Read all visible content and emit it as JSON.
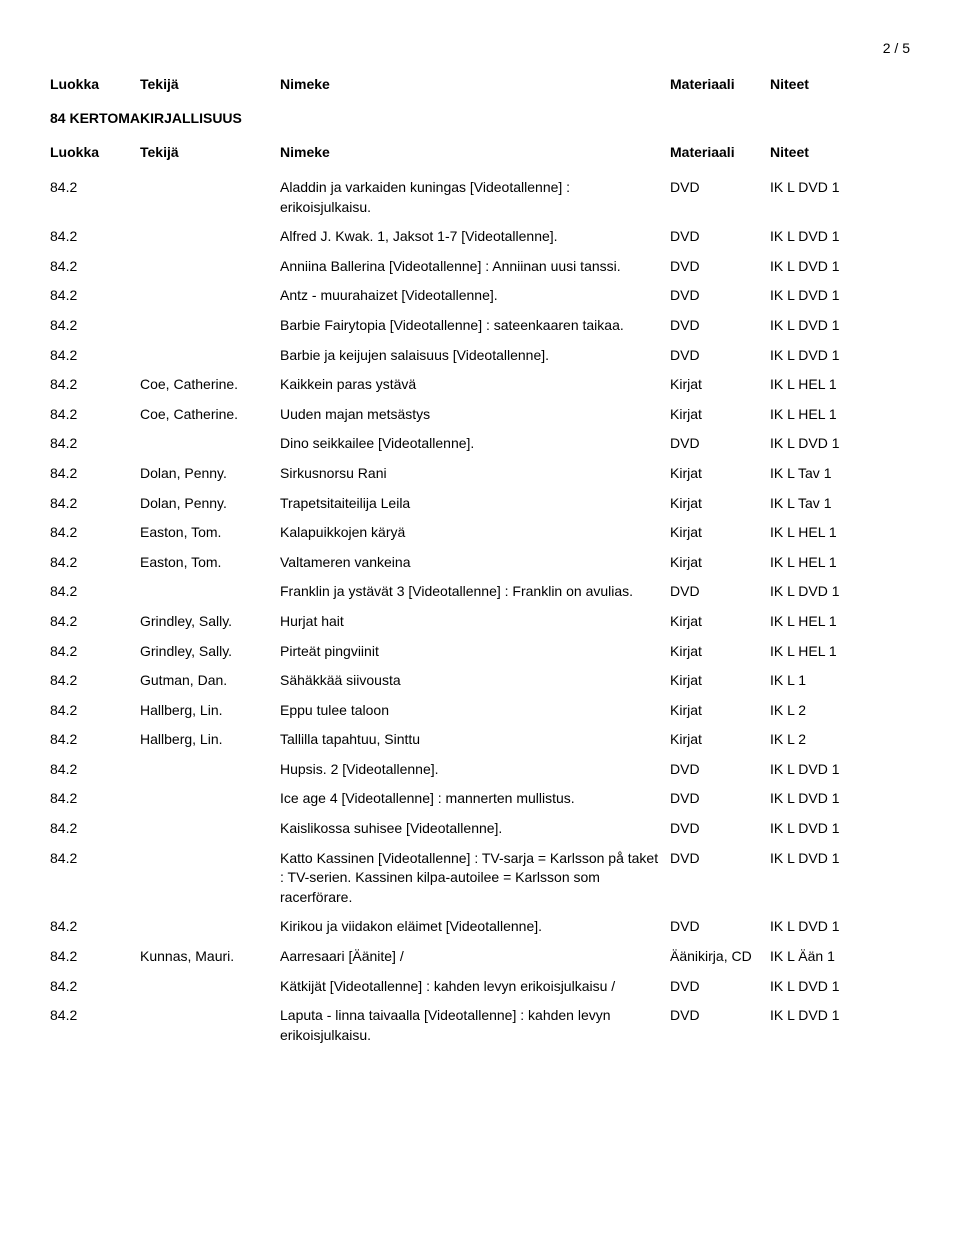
{
  "page_number": "2 / 5",
  "headers": {
    "luokka": "Luokka",
    "tekija": "Tekijä",
    "nimeke": "Nimeke",
    "materiaali": "Materiaali",
    "niteet": "Niteet"
  },
  "section_title": "84 KERTOMAKIRJALLISUUS",
  "rows": [
    {
      "luokka": "84.2",
      "tekija": "",
      "nimeke": "Aladdin ja varkaiden kuningas [Videotallenne] : erikoisjulkaisu.",
      "materiaali": "DVD",
      "niteet": "IK  L DVD 1"
    },
    {
      "luokka": "84.2",
      "tekija": "",
      "nimeke": "Alfred J. Kwak. 1, Jaksot 1-7 [Videotallenne].",
      "materiaali": "DVD",
      "niteet": "IK  L DVD 1"
    },
    {
      "luokka": "84.2",
      "tekija": "",
      "nimeke": "Anniina Ballerina [Videotallenne] : Anniinan uusi tanssi.",
      "materiaali": "DVD",
      "niteet": "IK  L DVD 1"
    },
    {
      "luokka": "84.2",
      "tekija": "",
      "nimeke": "Antz - muurahaizet [Videotallenne].",
      "materiaali": "DVD",
      "niteet": "IK  L DVD 1"
    },
    {
      "luokka": "84.2",
      "tekija": "",
      "nimeke": "Barbie Fairytopia [Videotallenne] : sateenkaaren taikaa.",
      "materiaali": "DVD",
      "niteet": "IK  L DVD 1"
    },
    {
      "luokka": "84.2",
      "tekija": "",
      "nimeke": "Barbie ja keijujen salaisuus [Videotallenne].",
      "materiaali": "DVD",
      "niteet": "IK  L DVD 1"
    },
    {
      "luokka": "84.2",
      "tekija": "Coe, Catherine.",
      "nimeke": "Kaikkein paras ystävä",
      "materiaali": "Kirjat",
      "niteet": "IK  L HEL 1"
    },
    {
      "luokka": "84.2",
      "tekija": "Coe, Catherine.",
      "nimeke": "Uuden majan metsästys",
      "materiaali": "Kirjat",
      "niteet": "IK  L HEL 1"
    },
    {
      "luokka": "84.2",
      "tekija": "",
      "nimeke": "Dino seikkailee [Videotallenne].",
      "materiaali": "DVD",
      "niteet": "IK  L DVD 1"
    },
    {
      "luokka": "84.2",
      "tekija": "Dolan, Penny.",
      "nimeke": "Sirkusnorsu Rani",
      "materiaali": "Kirjat",
      "niteet": "IK  L Tav 1"
    },
    {
      "luokka": "84.2",
      "tekija": "Dolan, Penny.",
      "nimeke": "Trapetsitaiteilija Leila",
      "materiaali": "Kirjat",
      "niteet": "IK  L Tav 1"
    },
    {
      "luokka": "84.2",
      "tekija": "Easton, Tom.",
      "nimeke": "Kalapuikkojen käryä",
      "materiaali": "Kirjat",
      "niteet": "IK  L HEL 1"
    },
    {
      "luokka": "84.2",
      "tekija": "Easton, Tom.",
      "nimeke": "Valtameren vankeina",
      "materiaali": "Kirjat",
      "niteet": "IK  L HEL 1"
    },
    {
      "luokka": "84.2",
      "tekija": "",
      "nimeke": "Franklin ja ystävät 3 [Videotallenne] : Franklin on avulias.",
      "materiaali": "DVD",
      "niteet": "IK  L DVD 1"
    },
    {
      "luokka": "84.2",
      "tekija": "Grindley, Sally.",
      "nimeke": "Hurjat hait",
      "materiaali": "Kirjat",
      "niteet": "IK  L HEL 1"
    },
    {
      "luokka": "84.2",
      "tekija": "Grindley, Sally.",
      "nimeke": "Pirteät pingviinit",
      "materiaali": "Kirjat",
      "niteet": "IK  L HEL 1"
    },
    {
      "luokka": "84.2",
      "tekija": "Gutman, Dan.",
      "nimeke": "Sähäkkää siivousta",
      "materiaali": "Kirjat",
      "niteet": "IK  L 1"
    },
    {
      "luokka": "84.2",
      "tekija": "Hallberg, Lin.",
      "nimeke": "Eppu tulee taloon",
      "materiaali": "Kirjat",
      "niteet": "IK  L 2"
    },
    {
      "luokka": "84.2",
      "tekija": "Hallberg, Lin.",
      "nimeke": "Tallilla tapahtuu, Sinttu",
      "materiaali": "Kirjat",
      "niteet": "IK  L 2"
    },
    {
      "luokka": "84.2",
      "tekija": "",
      "nimeke": "Hupsis. 2 [Videotallenne].",
      "materiaali": "DVD",
      "niteet": "IK  L DVD 1"
    },
    {
      "luokka": "84.2",
      "tekija": "",
      "nimeke": "Ice age 4 [Videotallenne] : mannerten mullistus.",
      "materiaali": "DVD",
      "niteet": "IK  L DVD 1"
    },
    {
      "luokka": "84.2",
      "tekija": "",
      "nimeke": "Kaislikossa suhisee [Videotallenne].",
      "materiaali": "DVD",
      "niteet": "IK  L DVD 1"
    },
    {
      "luokka": "84.2",
      "tekija": "",
      "nimeke": "Katto Kassinen [Videotallenne] : TV-sarja = Karlsson på taket : TV-serien. Kassinen kilpa-autoilee = Karlsson som racerförare.",
      "materiaali": "DVD",
      "niteet": "IK  L DVD 1"
    },
    {
      "luokka": "84.2",
      "tekija": "",
      "nimeke": "Kirikou ja viidakon eläimet [Videotallenne].",
      "materiaali": "DVD",
      "niteet": "IK  L DVD 1"
    },
    {
      "luokka": "84.2",
      "tekija": "Kunnas, Mauri.",
      "nimeke": "Aarresaari [Äänite] /",
      "materiaali": "Äänikirja, CD",
      "niteet": "IK  L Ään 1"
    },
    {
      "luokka": "84.2",
      "tekija": "",
      "nimeke": "Kätkijät [Videotallenne] : kahden levyn erikoisjulkaisu /",
      "materiaali": "DVD",
      "niteet": "IK  L DVD 1"
    },
    {
      "luokka": "84.2",
      "tekija": "",
      "nimeke": "Laputa - linna taivaalla [Videotallenne] : kahden levyn erikoisjulkaisu.",
      "materiaali": "DVD",
      "niteet": "IK  L DVD 1"
    }
  ]
}
